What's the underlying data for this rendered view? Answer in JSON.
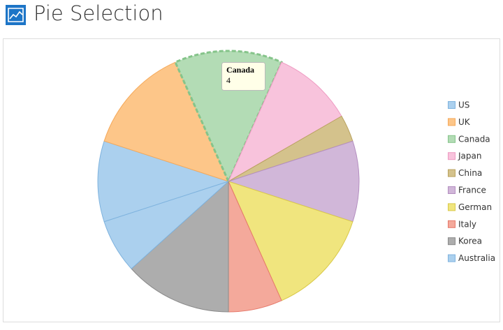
{
  "chart_data": {
    "type": "pie",
    "title": "Pie Selection",
    "categories": [
      "US",
      "UK",
      "Canada",
      "Japan",
      "China",
      "France",
      "German",
      "Italy",
      "Korea",
      "Australia"
    ],
    "values": [
      3,
      4,
      4,
      3,
      1,
      3,
      4,
      2,
      4,
      2
    ],
    "colors": [
      "#abd0ee",
      "#fdc689",
      "#b3dcb5",
      "#f8c3dc",
      "#d4c28c",
      "#d1b7d9",
      "#f0e57e",
      "#f4a99b",
      "#adadad",
      "#abd0ee"
    ],
    "strokes": [
      "#7fb3de",
      "#f5a95a",
      "#85c48a",
      "#ee9ac2",
      "#b9a25f",
      "#b48fc0",
      "#d9c94a",
      "#e6786a",
      "#8a8a8a",
      "#7fb3de"
    ]
  }
}
